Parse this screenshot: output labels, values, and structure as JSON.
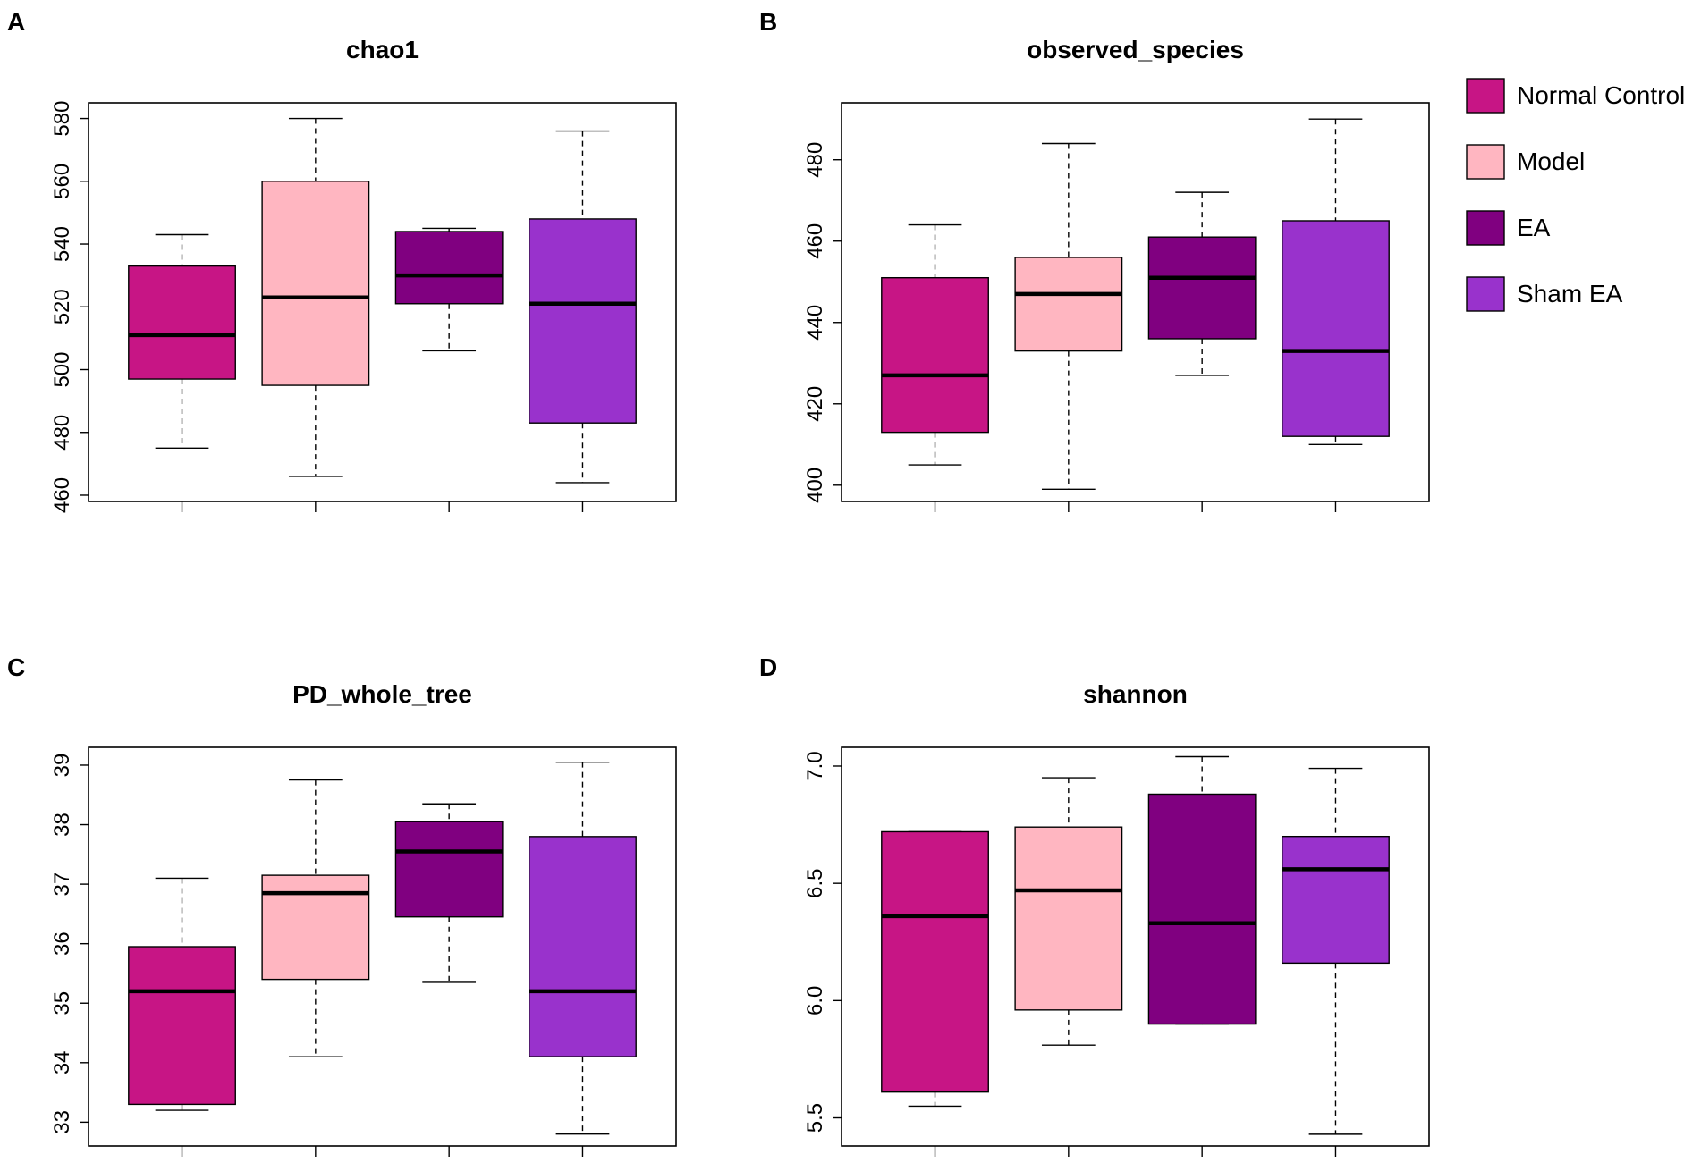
{
  "chart_data": [
    {
      "type": "box",
      "panel": "A",
      "title": "chao1",
      "xlabel": "",
      "ylabel": "",
      "ylim": [
        458,
        585
      ],
      "yticks": [
        460,
        480,
        500,
        520,
        540,
        560,
        580
      ],
      "categories": [
        "Normal Control",
        "Model",
        "EA",
        "Sham EA"
      ],
      "boxes": [
        {
          "group": "Normal Control",
          "whisker_low": 475,
          "q1": 497,
          "median": 511,
          "q3": 533,
          "whisker_high": 543
        },
        {
          "group": "Model",
          "whisker_low": 466,
          "q1": 495,
          "median": 523,
          "q3": 560,
          "whisker_high": 580
        },
        {
          "group": "EA",
          "whisker_low": 506,
          "q1": 521,
          "median": 530,
          "q3": 544,
          "whisker_high": 545
        },
        {
          "group": "Sham EA",
          "whisker_low": 464,
          "q1": 483,
          "median": 521,
          "q3": 548,
          "whisker_high": 576
        }
      ]
    },
    {
      "type": "box",
      "panel": "B",
      "title": "observed_species",
      "xlabel": "",
      "ylabel": "",
      "ylim": [
        396,
        494
      ],
      "yticks": [
        400,
        420,
        440,
        460,
        480
      ],
      "categories": [
        "Normal Control",
        "Model",
        "EA",
        "Sham EA"
      ],
      "boxes": [
        {
          "group": "Normal Control",
          "whisker_low": 405,
          "q1": 413,
          "median": 427,
          "q3": 451,
          "whisker_high": 464
        },
        {
          "group": "Model",
          "whisker_low": 399,
          "q1": 433,
          "median": 447,
          "q3": 456,
          "whisker_high": 484
        },
        {
          "group": "EA",
          "whisker_low": 427,
          "q1": 436,
          "median": 451,
          "q3": 461,
          "whisker_high": 472
        },
        {
          "group": "Sham EA",
          "whisker_low": 410,
          "q1": 412,
          "median": 433,
          "q3": 465,
          "whisker_high": 490
        }
      ]
    },
    {
      "type": "box",
      "panel": "C",
      "title": "PD_whole_tree",
      "xlabel": "",
      "ylabel": "",
      "ylim": [
        32.6,
        39.3
      ],
      "yticks": [
        33,
        34,
        35,
        36,
        37,
        38,
        39
      ],
      "categories": [
        "Normal Control",
        "Model",
        "EA",
        "Sham EA"
      ],
      "boxes": [
        {
          "group": "Normal Control",
          "whisker_low": 33.2,
          "q1": 33.3,
          "median": 35.2,
          "q3": 35.95,
          "whisker_high": 37.1
        },
        {
          "group": "Model",
          "whisker_low": 34.1,
          "q1": 35.4,
          "median": 36.85,
          "q3": 37.15,
          "whisker_high": 38.75
        },
        {
          "group": "EA",
          "whisker_low": 35.35,
          "q1": 36.45,
          "median": 37.55,
          "q3": 38.05,
          "whisker_high": 38.35
        },
        {
          "group": "Sham EA",
          "whisker_low": 32.8,
          "q1": 34.1,
          "median": 35.2,
          "q3": 37.8,
          "whisker_high": 39.05
        }
      ]
    },
    {
      "type": "box",
      "panel": "D",
      "title": "shannon",
      "xlabel": "",
      "ylabel": "",
      "ylim": [
        5.38,
        7.08
      ],
      "yticks": [
        5.5,
        6.0,
        6.5,
        7.0
      ],
      "ytick_labels": [
        "5.5",
        "6.0",
        "6.5",
        "7.0"
      ],
      "categories": [
        "Normal Control",
        "Model",
        "EA",
        "Sham EA"
      ],
      "boxes": [
        {
          "group": "Normal Control",
          "whisker_low": 5.55,
          "q1": 5.61,
          "median": 6.36,
          "q3": 6.72,
          "whisker_high": 6.72
        },
        {
          "group": "Model",
          "whisker_low": 5.81,
          "q1": 5.96,
          "median": 6.47,
          "q3": 6.74,
          "whisker_high": 6.95
        },
        {
          "group": "EA",
          "whisker_low": 5.9,
          "q1": 5.9,
          "median": 6.33,
          "q3": 6.88,
          "whisker_high": 7.04
        },
        {
          "group": "Sham EA",
          "whisker_low": 5.43,
          "q1": 6.16,
          "median": 6.56,
          "q3": 6.7,
          "whisker_high": 6.99
        }
      ]
    }
  ],
  "legend": {
    "position": "top-right",
    "items": [
      {
        "label": "Normal Control",
        "color": "#C71585"
      },
      {
        "label": "Model",
        "color": "#FFB6C1"
      },
      {
        "label": "EA",
        "color": "#800080"
      },
      {
        "label": "Sham EA",
        "color": "#9932CC"
      }
    ]
  },
  "colors": {
    "Normal Control": "#C71585",
    "Model": "#FFB6C1",
    "EA": "#800080",
    "Sham EA": "#9932CC"
  }
}
